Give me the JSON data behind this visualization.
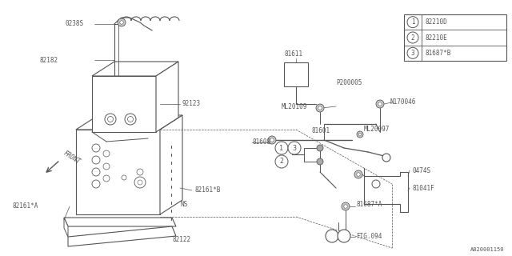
{
  "bg_color": "#ffffff",
  "line_color": "#555555",
  "legend_items": [
    {
      "num": "1",
      "label": "82210D"
    },
    {
      "num": "2",
      "label": "82210E"
    },
    {
      "num": "3",
      "label": "81687*B"
    }
  ],
  "watermark": "A820001150",
  "figsize": [
    6.4,
    3.2
  ],
  "dpi": 100
}
